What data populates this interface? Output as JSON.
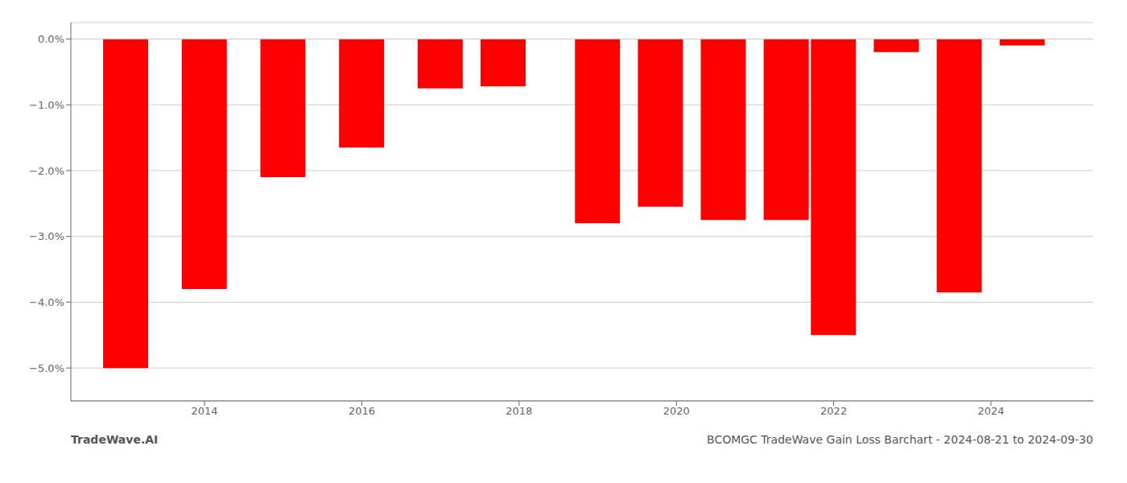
{
  "chart_data": {
    "type": "bar",
    "title": "BCOMGC TradeWave Gain Loss Barchart - 2024-08-21 to 2024-09-30",
    "annotations": [
      "TradeWave.AI"
    ],
    "x": [
      2013,
      2014,
      2015,
      2016,
      2017,
      2017.8,
      2019,
      2019.8,
      2020.6,
      2021.4,
      2022,
      2022.8,
      2023.6,
      2024.4
    ],
    "values": [
      -5.0,
      -3.8,
      -2.1,
      -1.65,
      -0.75,
      -0.72,
      -2.8,
      -2.55,
      -2.75,
      -2.75,
      -4.5,
      -0.2,
      -3.85,
      -0.1
    ],
    "color": "#ff0000",
    "xlim": [
      2012.3,
      2025.3
    ],
    "xticks": [
      2014,
      2016,
      2018,
      2020,
      2022,
      2024
    ],
    "ylim": [
      -5.5,
      0.25
    ],
    "yticks": [
      {
        "value": 0.0,
        "label": "0.0%"
      },
      {
        "value": -1.0,
        "label": "−1.0%"
      },
      {
        "value": -2.0,
        "label": "−2.0%"
      },
      {
        "value": -3.0,
        "label": "−3.0%"
      },
      {
        "value": -4.0,
        "label": "−4.0%"
      },
      {
        "value": -5.0,
        "label": "−5.0%"
      }
    ],
    "grid": true
  }
}
